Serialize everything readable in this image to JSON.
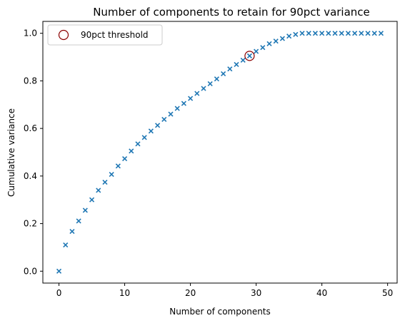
{
  "chart_data": {
    "type": "scatter",
    "title": "Number of components to retain for 90pct variance",
    "xlabel": "Number of components",
    "ylabel": "Cumulative variance",
    "xlim": [
      -2.45,
      51.45
    ],
    "ylim": [
      -0.05,
      1.05
    ],
    "xticks": [
      0,
      10,
      20,
      30,
      40,
      50
    ],
    "xtick_labels": [
      "0",
      "10",
      "20",
      "30",
      "40",
      "50"
    ],
    "yticks": [
      0.0,
      0.2,
      0.4,
      0.6,
      0.8,
      1.0
    ],
    "ytick_labels": [
      "0.0",
      "0.2",
      "0.4",
      "0.6",
      "0.8",
      "1.0"
    ],
    "grid": false,
    "legend_position": "top-left",
    "series": [
      {
        "marker": "x",
        "color": "#1f77b4",
        "x": [
          0,
          1,
          2,
          3,
          4,
          5,
          6,
          7,
          8,
          9,
          10,
          11,
          12,
          13,
          14,
          15,
          16,
          17,
          18,
          19,
          20,
          21,
          22,
          23,
          24,
          25,
          26,
          27,
          28,
          29,
          30,
          31,
          32,
          33,
          34,
          35,
          36,
          37,
          38,
          39,
          40,
          41,
          42,
          43,
          44,
          45,
          46,
          47,
          48,
          49
        ],
        "y": [
          0.0,
          0.11,
          0.167,
          0.211,
          0.256,
          0.3,
          0.34,
          0.374,
          0.407,
          0.442,
          0.473,
          0.505,
          0.535,
          0.562,
          0.589,
          0.613,
          0.638,
          0.66,
          0.684,
          0.705,
          0.726,
          0.747,
          0.768,
          0.788,
          0.808,
          0.83,
          0.85,
          0.869,
          0.887,
          0.905,
          0.924,
          0.94,
          0.956,
          0.967,
          0.978,
          0.988,
          0.995,
          1.0,
          1.0,
          1.0,
          1.0,
          1.0,
          1.0,
          1.0,
          1.0,
          1.0,
          1.0,
          1.0,
          1.0,
          1.0
        ]
      },
      {
        "name": "90pct threshold",
        "marker": "circle-open",
        "color": "#8b0000",
        "x": [
          29
        ],
        "y": [
          0.905
        ]
      }
    ]
  }
}
